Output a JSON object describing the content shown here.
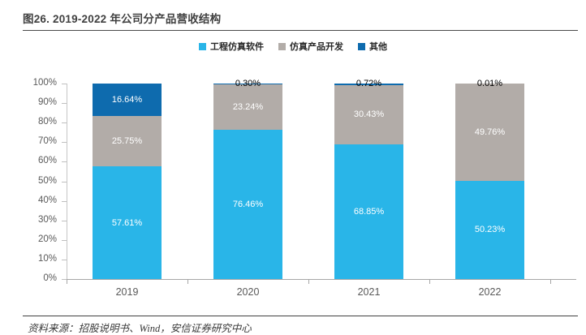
{
  "figure": {
    "title": "图26. 2019-2022 年公司分产品营收结构",
    "source": "资料来源：招股说明书、Wind，安信证券研究中心"
  },
  "colors": {
    "engineering_sim_blue": "#29B5E8",
    "sim_dev_gray": "#B2ACA8",
    "other_darkblue": "#0E6BAE",
    "axis_gray": "#BFBFBF",
    "tick_label_gray": "#595959",
    "title_gray": "#404040"
  },
  "chart_data": {
    "type": "bar",
    "stacked": true,
    "percent_stacked": true,
    "title": "2019-2022 年公司分产品营收结构",
    "categories": [
      "2019",
      "2020",
      "2021",
      "2022"
    ],
    "series": [
      {
        "name": "工程仿真软件",
        "color_key": "engineering_sim_blue",
        "values": [
          57.61,
          76.46,
          68.85,
          50.23
        ]
      },
      {
        "name": "仿真产品开发",
        "color_key": "sim_dev_gray",
        "values": [
          25.75,
          23.24,
          30.43,
          49.76
        ]
      },
      {
        "name": "其他",
        "color_key": "other_darkblue",
        "values": [
          16.64,
          0.3,
          0.72,
          0.01
        ]
      }
    ],
    "ylim": [
      0,
      100
    ],
    "yticks": [
      "0%",
      "10%",
      "20%",
      "30%",
      "40%",
      "50%",
      "60%",
      "70%",
      "80%",
      "90%",
      "100%"
    ],
    "xlabel": "",
    "ylabel": "",
    "grid": false,
    "legend_position": "top"
  }
}
